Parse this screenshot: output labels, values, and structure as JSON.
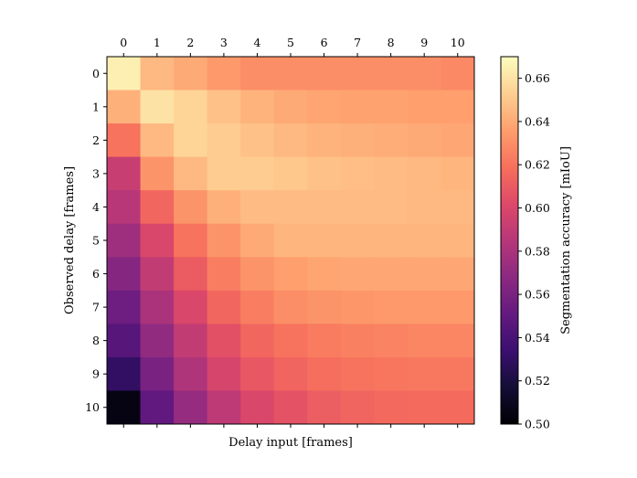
{
  "chart_data": {
    "type": "heatmap",
    "title": "",
    "xlabel": "Delay input [frames]",
    "ylabel": "Observed delay [frames]",
    "colorbar_label": "Segmentation accuracy [mIoU]",
    "colormap": "magma",
    "x_categories": [
      "0",
      "1",
      "2",
      "3",
      "4",
      "5",
      "6",
      "7",
      "8",
      "9",
      "10"
    ],
    "y_categories": [
      "0",
      "1",
      "2",
      "3",
      "4",
      "5",
      "6",
      "7",
      "8",
      "9",
      "10"
    ],
    "x_tick_position": "top",
    "vmin": 0.5,
    "vmax": 0.67,
    "colorbar_ticks": [
      "0.50",
      "0.52",
      "0.54",
      "0.56",
      "0.58",
      "0.60",
      "0.62",
      "0.64",
      "0.66"
    ],
    "values": [
      [
        0.665,
        0.645,
        0.64,
        0.634,
        0.63,
        0.63,
        0.63,
        0.63,
        0.63,
        0.63,
        0.628
      ],
      [
        0.642,
        0.66,
        0.655,
        0.648,
        0.643,
        0.64,
        0.638,
        0.637,
        0.637,
        0.636,
        0.636
      ],
      [
        0.62,
        0.645,
        0.655,
        0.652,
        0.648,
        0.645,
        0.643,
        0.642,
        0.641,
        0.64,
        0.639
      ],
      [
        0.592,
        0.632,
        0.645,
        0.652,
        0.652,
        0.65,
        0.648,
        0.647,
        0.646,
        0.645,
        0.644
      ],
      [
        0.585,
        0.615,
        0.632,
        0.642,
        0.646,
        0.646,
        0.646,
        0.646,
        0.646,
        0.645,
        0.645
      ],
      [
        0.575,
        0.6,
        0.62,
        0.632,
        0.64,
        0.644,
        0.644,
        0.644,
        0.644,
        0.644,
        0.644
      ],
      [
        0.565,
        0.59,
        0.61,
        0.624,
        0.632,
        0.636,
        0.638,
        0.639,
        0.639,
        0.639,
        0.639
      ],
      [
        0.555,
        0.58,
        0.6,
        0.615,
        0.624,
        0.63,
        0.632,
        0.633,
        0.634,
        0.634,
        0.634
      ],
      [
        0.545,
        0.57,
        0.59,
        0.605,
        0.615,
        0.62,
        0.623,
        0.625,
        0.626,
        0.627,
        0.627
      ],
      [
        0.53,
        0.56,
        0.582,
        0.598,
        0.608,
        0.614,
        0.618,
        0.62,
        0.621,
        0.622,
        0.622
      ],
      [
        0.505,
        0.55,
        0.572,
        0.588,
        0.6,
        0.606,
        0.611,
        0.614,
        0.616,
        0.617,
        0.617
      ]
    ]
  }
}
